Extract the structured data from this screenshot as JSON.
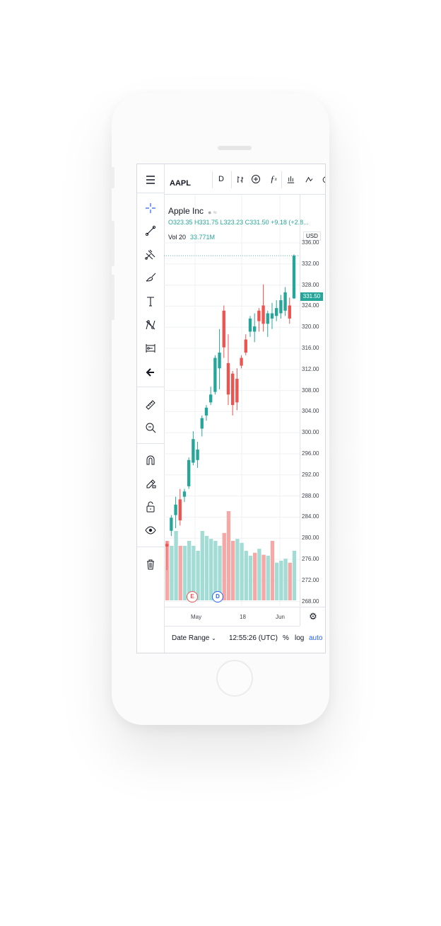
{
  "topbar": {
    "symbol": "AAPL",
    "interval": "D",
    "buttons": [
      "bar-type-icon",
      "add-compare-icon",
      "indicators-icon",
      "templates-icon",
      "alert-icon",
      "replay-icon"
    ]
  },
  "legend": {
    "name": "Apple Inc",
    "ohlc": "O323.35  H331.75  L323.23  C331.50  +9.18 (+2.8...",
    "vol_label": "Vol 20",
    "vol_value": "33.771M"
  },
  "price_axis": {
    "currency": "USD",
    "labels": [
      "336.00",
      "332.00",
      "328.00",
      "324.00",
      "320.00",
      "316.00",
      "312.00",
      "308.00",
      "304.00",
      "300.00",
      "296.00",
      "292.00",
      "288.00",
      "284.00",
      "280.00",
      "276.00",
      "272.00",
      "268.00"
    ],
    "last_price": "331.50"
  },
  "time_axis": {
    "labels": [
      "May",
      "18",
      "Jun"
    ]
  },
  "events": [
    "E",
    "D"
  ],
  "bottombar": {
    "date_range": "Date Range",
    "time": "12:55:26 (UTC)",
    "percent": "%",
    "log": "log",
    "auto": "auto"
  },
  "left_tools": [
    "menu-icon",
    "crosshair-icon",
    "trend-line-icon",
    "pitchfork-icon",
    "brush-icon",
    "text-icon",
    "pattern-icon",
    "prediction-icon",
    "back-arrow-icon",
    "ruler-icon",
    "zoom-out-icon",
    "magnet-icon",
    "lock-drawing-icon",
    "unlock-icon",
    "eye-icon",
    "trash-icon"
  ],
  "colors": {
    "up": "#26a69a",
    "down": "#ef5350",
    "up_vol": "#a2dcd5",
    "down_vol": "#f5a8a6"
  },
  "chart_data": {
    "type": "candlestick",
    "ylim": [
      266,
      338
    ],
    "candles": [
      {
        "o": 276.0,
        "h": 277.0,
        "l": 271.5,
        "c": 276.5,
        "down": true
      },
      {
        "o": 279.0,
        "h": 282.0,
        "l": 278.0,
        "c": 281.5
      },
      {
        "o": 282.0,
        "h": 285.5,
        "l": 279.5,
        "c": 284.0
      },
      {
        "o": 285.0,
        "h": 287.0,
        "l": 280.0,
        "c": 281.0,
        "down": true
      },
      {
        "o": 285.5,
        "h": 287.0,
        "l": 284.5,
        "c": 286.5
      },
      {
        "o": 287.5,
        "h": 293.0,
        "l": 287.0,
        "c": 292.5
      },
      {
        "o": 292.0,
        "h": 298.0,
        "l": 291.5,
        "c": 296.5
      },
      {
        "o": 292.5,
        "h": 296.0,
        "l": 291.0,
        "c": 294.5
      },
      {
        "o": 298.5,
        "h": 301.0,
        "l": 297.0,
        "c": 300.5
      },
      {
        "o": 301.0,
        "h": 303.0,
        "l": 300.0,
        "c": 302.5
      },
      {
        "o": 303.5,
        "h": 306.5,
        "l": 303.0,
        "c": 305.0
      },
      {
        "o": 305.5,
        "h": 312.5,
        "l": 305.0,
        "c": 312.0
      },
      {
        "o": 310.0,
        "h": 317.5,
        "l": 306.0,
        "c": 313.0
      },
      {
        "o": 321.0,
        "h": 322.0,
        "l": 312.0,
        "c": 314.0,
        "down": true
      },
      {
        "o": 311.0,
        "h": 316.5,
        "l": 303.0,
        "c": 305.0,
        "down": true
      },
      {
        "o": 309.0,
        "h": 309.5,
        "l": 301.0,
        "c": 303.0,
        "down": true
      },
      {
        "o": 308.0,
        "h": 310.0,
        "l": 302.0,
        "c": 303.5,
        "down": true
      },
      {
        "o": 312.0,
        "h": 312.5,
        "l": 310.0,
        "c": 310.5,
        "down": true
      },
      {
        "o": 315.5,
        "h": 316.5,
        "l": 312.5,
        "c": 313.0,
        "down": true
      },
      {
        "o": 317.0,
        "h": 320.0,
        "l": 316.0,
        "c": 319.5
      },
      {
        "o": 317.0,
        "h": 320.5,
        "l": 315.0,
        "c": 318.0
      },
      {
        "o": 321.0,
        "h": 321.5,
        "l": 317.0,
        "c": 319.0,
        "down": true
      },
      {
        "o": 322.0,
        "h": 326.0,
        "l": 317.0,
        "c": 318.5,
        "down": true
      },
      {
        "o": 318.5,
        "h": 321.0,
        "l": 316.0,
        "c": 320.5
      },
      {
        "o": 319.5,
        "h": 322.5,
        "l": 317.5,
        "c": 320.5
      },
      {
        "o": 320.0,
        "h": 323.0,
        "l": 319.0,
        "c": 321.5
      },
      {
        "o": 320.5,
        "h": 324.0,
        "l": 319.5,
        "c": 323.0
      },
      {
        "o": 321.0,
        "h": 325.5,
        "l": 320.0,
        "c": 324.5
      },
      {
        "o": 322.0,
        "h": 323.5,
        "l": 318.5,
        "c": 319.5,
        "down": true
      },
      {
        "o": 323.35,
        "h": 331.75,
        "l": 323.23,
        "c": 331.5
      }
    ],
    "volume": [
      {
        "v": 0.6,
        "down": true
      },
      {
        "v": 0.55
      },
      {
        "v": 0.7
      },
      {
        "v": 0.55,
        "down": true
      },
      {
        "v": 0.55
      },
      {
        "v": 0.6
      },
      {
        "v": 0.55
      },
      {
        "v": 0.5
      },
      {
        "v": 0.7
      },
      {
        "v": 0.65
      },
      {
        "v": 0.62
      },
      {
        "v": 0.6
      },
      {
        "v": 0.55
      },
      {
        "v": 0.68,
        "down": true
      },
      {
        "v": 0.9,
        "down": true
      },
      {
        "v": 0.6,
        "down": true
      },
      {
        "v": 0.62
      },
      {
        "v": 0.58
      },
      {
        "v": 0.5
      },
      {
        "v": 0.45
      },
      {
        "v": 0.48,
        "down": true
      },
      {
        "v": 0.52
      },
      {
        "v": 0.46,
        "down": true
      },
      {
        "v": 0.45
      },
      {
        "v": 0.6,
        "down": true
      },
      {
        "v": 0.38
      },
      {
        "v": 0.4
      },
      {
        "v": 0.42
      },
      {
        "v": 0.38,
        "down": true
      },
      {
        "v": 0.5
      }
    ]
  }
}
